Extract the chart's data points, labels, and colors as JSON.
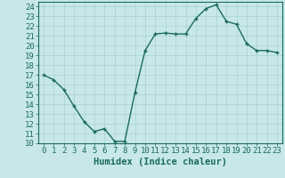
{
  "x": [
    0,
    1,
    2,
    3,
    4,
    5,
    6,
    7,
    8,
    9,
    10,
    11,
    12,
    13,
    14,
    15,
    16,
    17,
    18,
    19,
    20,
    21,
    22,
    23
  ],
  "y": [
    17,
    16.5,
    15.5,
    13.8,
    12.2,
    11.2,
    11.5,
    10.2,
    10.2,
    15.2,
    19.5,
    21.2,
    21.3,
    21.2,
    21.2,
    22.8,
    23.8,
    24.2,
    22.5,
    22.2,
    20.2,
    19.5,
    19.5,
    19.3
  ],
  "line_color": "#1a6b5a",
  "bg_color": "#c8e8e8",
  "grid_color": "#a8d0d0",
  "axis_color": "#1a6b5a",
  "xlabel": "Humidex (Indice chaleur)",
  "xlim": [
    -0.5,
    23.5
  ],
  "ylim": [
    10,
    24.5
  ],
  "yticks": [
    10,
    11,
    12,
    13,
    14,
    15,
    16,
    17,
    18,
    19,
    20,
    21,
    22,
    23,
    24
  ],
  "xticks": [
    0,
    1,
    2,
    3,
    4,
    5,
    6,
    7,
    8,
    9,
    10,
    11,
    12,
    13,
    14,
    15,
    16,
    17,
    18,
    19,
    20,
    21,
    22,
    23
  ],
  "marker": "+",
  "marker_size": 3.5,
  "line_width": 1.0,
  "font_size": 6.5,
  "xlabel_font_size": 7.5
}
